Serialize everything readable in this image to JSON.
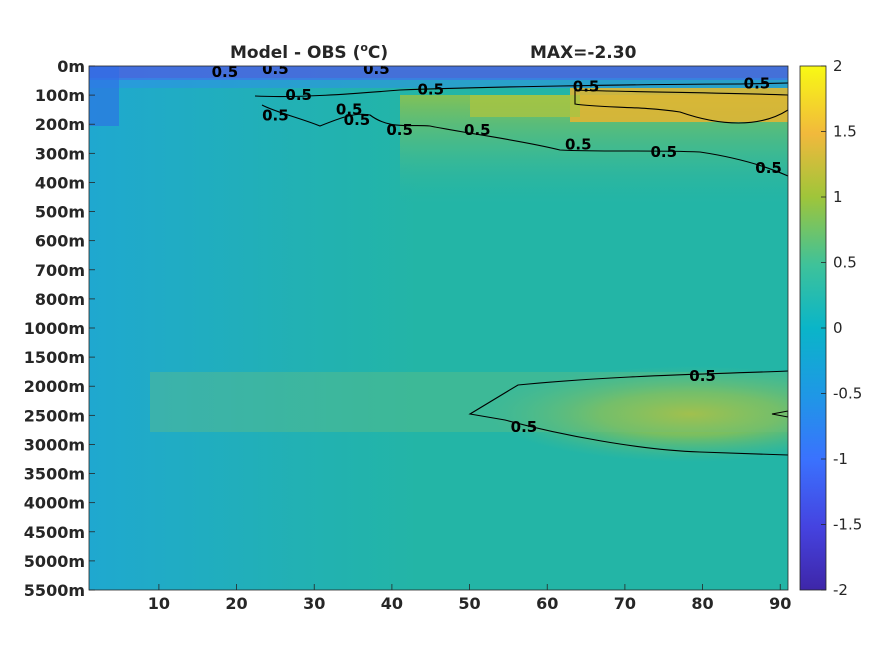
{
  "title": {
    "left": "Model - OBS (",
    "deg": "o",
    "right": "C)",
    "max_text": "MAX=-2.30"
  },
  "chart_data": {
    "type": "heatmap",
    "x": {
      "ticks": [
        10,
        20,
        30,
        40,
        50,
        60,
        70,
        80,
        90
      ],
      "range": [
        1,
        91
      ]
    },
    "y": {
      "ticks": [
        "0m",
        "100m",
        "200m",
        "300m",
        "400m",
        "500m",
        "600m",
        "700m",
        "800m",
        "1000m",
        "1500m",
        "2000m",
        "2500m",
        "3000m",
        "3500m",
        "4000m",
        "4500m",
        "5000m",
        "5500m"
      ],
      "orientation": "depth increasing downward"
    },
    "colorbar": {
      "ticks": [
        "2",
        "1.5",
        "1",
        "0.5",
        "0",
        "-0.5",
        "-1",
        "-1.5",
        "-2"
      ],
      "range": [
        -2,
        2
      ],
      "colormap": "parula"
    },
    "contour_level": 0.5,
    "contour_labels": [
      {
        "text": "0.5",
        "x": 18.5,
        "depth_index": 0.2
      },
      {
        "text": "0.5",
        "x": 25,
        "depth_index": 0.1
      },
      {
        "text": "0.5",
        "x": 38,
        "depth_index": 0.1
      },
      {
        "text": "0.5",
        "x": 28,
        "depth_index": 1.0
      },
      {
        "text": "0.5",
        "x": 45,
        "depth_index": 0.8
      },
      {
        "text": "0.5",
        "x": 65,
        "depth_index": 0.7
      },
      {
        "text": "0.5",
        "x": 87,
        "depth_index": 0.6
      },
      {
        "text": "0.5",
        "x": 25,
        "depth_index": 1.7
      },
      {
        "text": "0.5",
        "x": 34.5,
        "depth_index": 1.5
      },
      {
        "text": "0.5",
        "x": 35.5,
        "depth_index": 1.85
      },
      {
        "text": "0.5",
        "x": 41,
        "depth_index": 2.2
      },
      {
        "text": "0.5",
        "x": 51,
        "depth_index": 2.2
      },
      {
        "text": "0.5",
        "x": 64,
        "depth_index": 2.7
      },
      {
        "text": "0.5",
        "x": 75,
        "depth_index": 2.95
      },
      {
        "text": "0.5",
        "x": 88.5,
        "depth_index": 3.5
      },
      {
        "text": "0.5",
        "x": 80,
        "depth_index": 10.65
      },
      {
        "text": "0.5",
        "x": 57,
        "depth_index": 12.4
      }
    ],
    "colors": {
      "background": "#1fb4ab",
      "cold": "#3a4ed9",
      "warm": "#f6b53a",
      "contour": "#000000"
    }
  }
}
